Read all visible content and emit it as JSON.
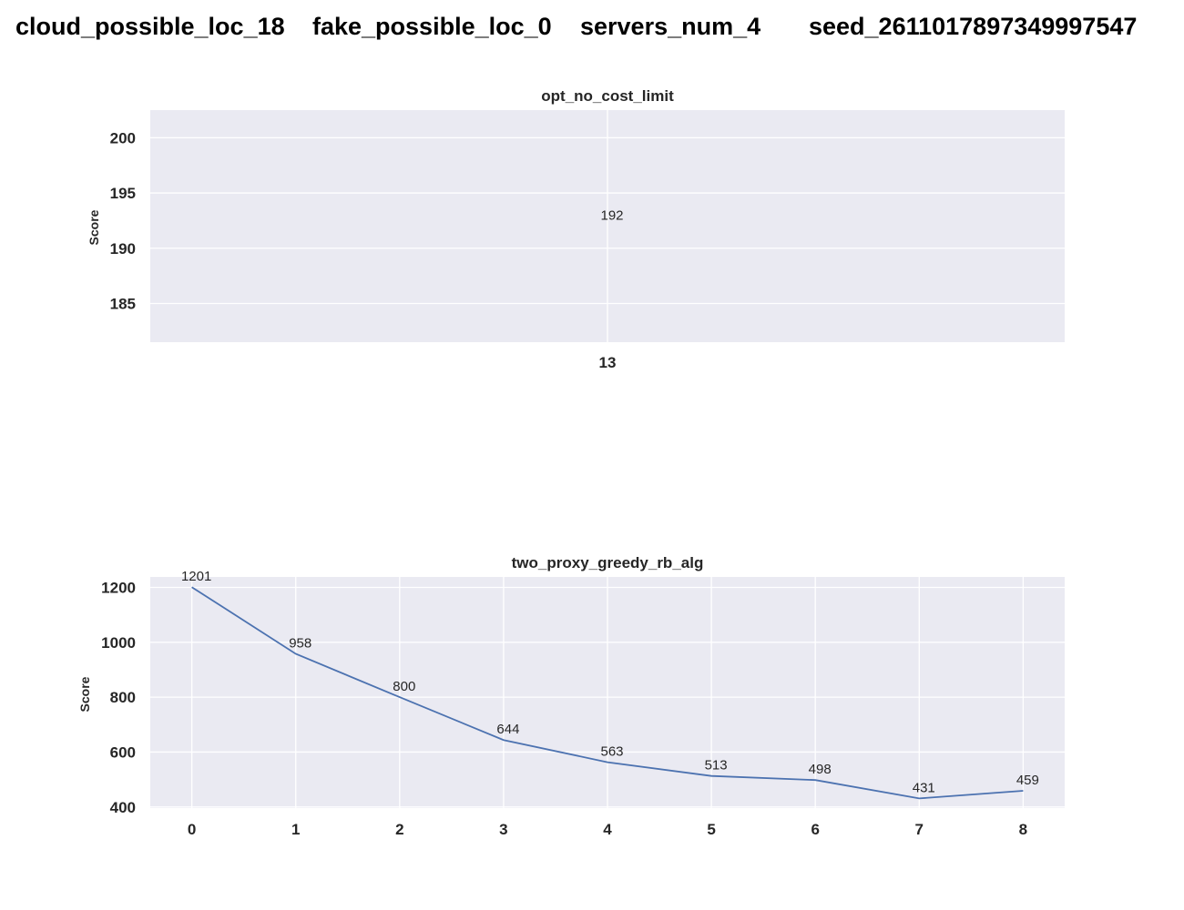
{
  "suptitle": {
    "parts": [
      "cloud_possible_loc_18",
      "fake_possible_loc_0",
      "servers_num_4",
      "seed_2611017897349997547"
    ]
  },
  "colors": {
    "plot_bg": "#eaeaf2",
    "grid": "#ffffff",
    "line": "#4c72b0",
    "text": "#262626"
  },
  "chart_data": [
    {
      "type": "line",
      "title": "opt_no_cost_limit",
      "xlabel": "",
      "ylabel": "Score",
      "x": [
        13
      ],
      "values": [
        192
      ],
      "ylim": [
        181.5,
        202.5
      ],
      "yticks": [
        185,
        190,
        195,
        200
      ],
      "xticks": [
        13
      ],
      "grid": true,
      "legend": "none"
    },
    {
      "type": "line",
      "title": "two_proxy_greedy_rb_alg",
      "xlabel": "",
      "ylabel": "Score",
      "x": [
        0,
        1,
        2,
        3,
        4,
        5,
        6,
        7,
        8
      ],
      "values": [
        1201,
        958,
        800,
        644,
        563,
        513,
        498,
        431,
        459
      ],
      "ylim": [
        396,
        1238
      ],
      "yticks": [
        400,
        600,
        800,
        1000,
        1200
      ],
      "xticks": [
        0,
        1,
        2,
        3,
        4,
        5,
        6,
        7,
        8
      ],
      "grid": true,
      "legend": "none"
    }
  ]
}
